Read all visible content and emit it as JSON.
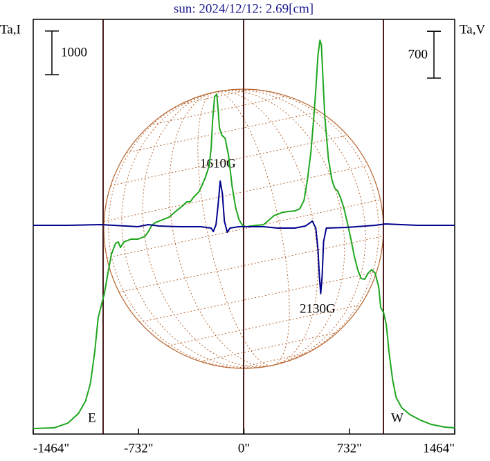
{
  "chart_data": {
    "type": "line",
    "title": "sun: 2024/12/12: 2.69[cm]",
    "ylabel": "Ta,I",
    "y2label": "Ta,V",
    "xlim": [
      -1464,
      1464
    ],
    "xticks": [
      {
        "value": -1464,
        "label": "-1464\""
      },
      {
        "value": -732,
        "label": "-732\""
      },
      {
        "value": 0,
        "label": "0\""
      },
      {
        "value": 732,
        "label": "732\""
      },
      {
        "value": 1464,
        "label": "1464\""
      }
    ],
    "ylim": [
      0,
      9500
    ],
    "y2lim": [
      -3100,
      3100
    ],
    "y_scale_bar": 1000,
    "y2_scale_bar": 700,
    "annotations": [
      "1610G",
      "2130G",
      "E",
      "W"
    ],
    "series": [
      {
        "color": "#1ea51e",
        "axis": "y",
        "x": [
          -1464,
          -1319,
          -1222,
          -1149,
          -1100,
          -1067,
          -1037,
          -1013,
          -989,
          -970,
          -945,
          -921,
          -892,
          -873,
          -858,
          -834,
          -785,
          -737,
          -688,
          -664,
          -640,
          -616,
          -567,
          -519,
          -470,
          -422,
          -398,
          -373,
          -349,
          -315,
          -291,
          -267,
          -242,
          -228,
          -218,
          -204,
          -189,
          -179,
          -170,
          -155,
          -131,
          -107,
          -82,
          -58,
          -34,
          -10,
          15,
          48,
          87,
          136,
          175,
          208,
          233,
          271,
          305,
          354,
          388,
          417,
          441,
          465,
          485,
          499,
          514,
          528,
          538,
          548,
          562,
          587,
          611,
          630,
          650,
          669,
          693,
          718,
          742,
          766,
          790,
          814,
          839,
          863,
          887,
          911,
          936,
          950,
          970,
          989,
          1008,
          1033,
          1057,
          1096,
          1154,
          1227,
          1299,
          1396,
          1464
        ],
        "values": [
          127,
          142,
          253,
          475,
          760,
          1156,
          1868,
          2659,
          2976,
          3213,
          3688,
          4116,
          4369,
          4401,
          4274,
          4401,
          4464,
          4464,
          4527,
          4638,
          4781,
          4844,
          4907,
          4971,
          5113,
          5240,
          5319,
          5319,
          5430,
          5541,
          5699,
          5889,
          6142,
          6538,
          7171,
          7725,
          7788,
          7408,
          7013,
          6854,
          6775,
          6379,
          5667,
          5192,
          4907,
          4781,
          4749,
          4765,
          4781,
          4796,
          4907,
          5002,
          5034,
          5081,
          5097,
          5113,
          5161,
          5351,
          5825,
          6459,
          7250,
          7883,
          8675,
          9023,
          8912,
          8200,
          7250,
          6300,
          5825,
          5635,
          5572,
          5430,
          5192,
          4844,
          4480,
          4084,
          3768,
          3562,
          3546,
          3688,
          3768,
          3688,
          3372,
          2897,
          2786,
          2501,
          1868,
          1235,
          839,
          602,
          443,
          317,
          222,
          158,
          142
        ]
      },
      {
        "color": "#00008c",
        "axis": "y2",
        "x": [
          -1464,
          -1222,
          -989,
          -737,
          -664,
          -591,
          -446,
          -301,
          -228,
          -213,
          -194,
          -179,
          -165,
          -150,
          -136,
          -116,
          -97,
          -34,
          39,
          136,
          233,
          354,
          427,
          475,
          499,
          514,
          524,
          533,
          543,
          553,
          572,
          718,
          911,
          984,
          1202,
          1464
        ],
        "values": [
          21,
          21,
          31,
          0,
          31,
          10,
          0,
          0,
          -21,
          -72,
          31,
          341,
          682,
          496,
          83,
          -83,
          -21,
          0,
          0,
          0,
          -21,
          -21,
          10,
          83,
          -21,
          -331,
          -744,
          -1002,
          -744,
          -227,
          -21,
          -10,
          21,
          41,
          21,
          21
        ]
      }
    ]
  }
}
